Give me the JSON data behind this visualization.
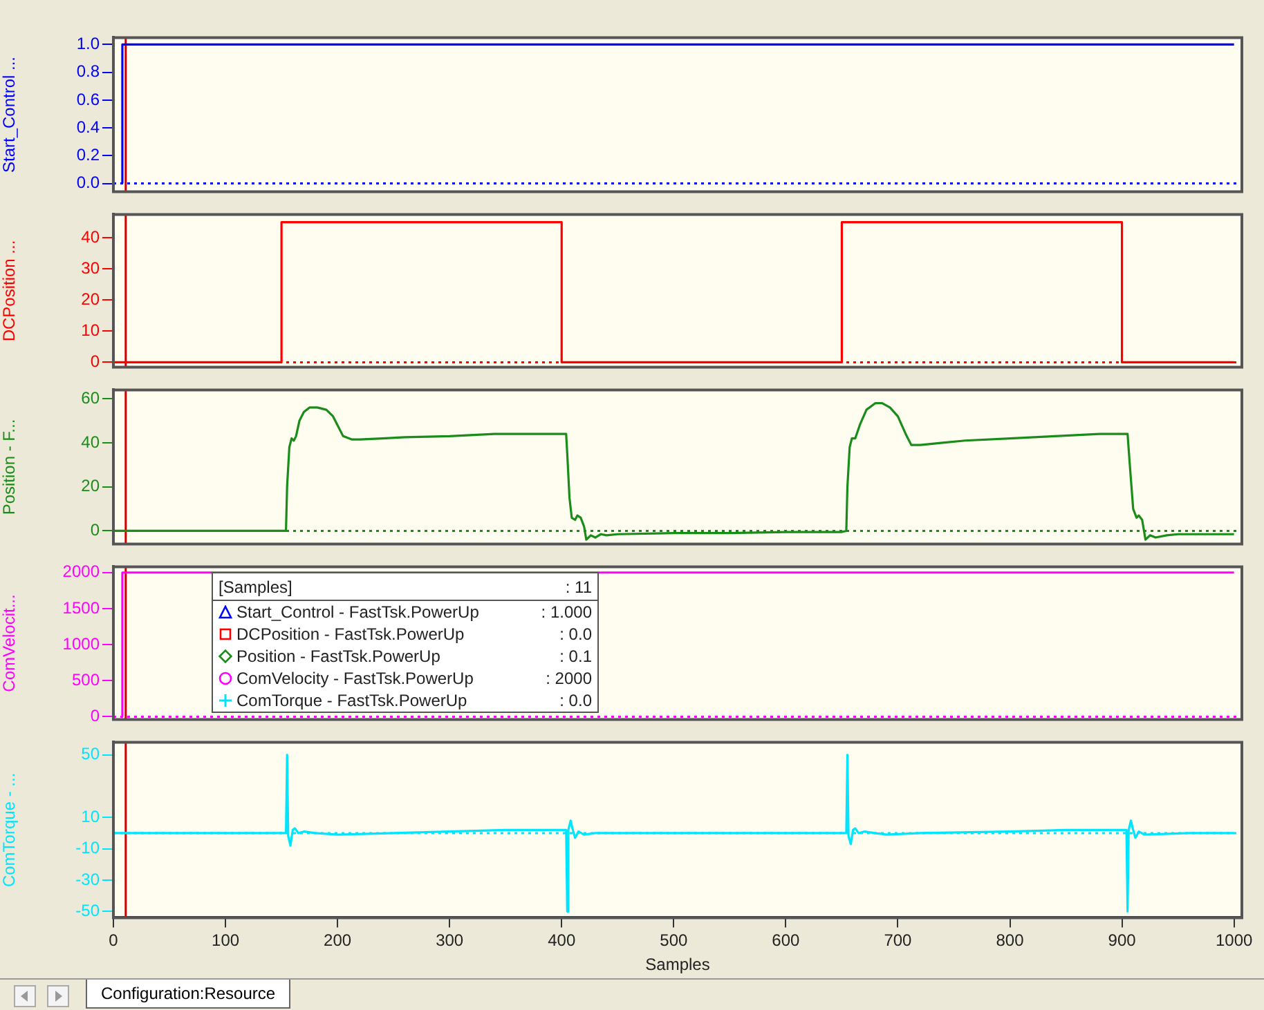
{
  "chart_data": [
    {
      "type": "line",
      "ylabel": "Start_Control ...",
      "x": [
        8,
        8,
        1000
      ],
      "xlim": [
        0,
        1007
      ],
      "ylim": [
        -0.06,
        1.05
      ],
      "yticks": [
        {
          "value": 0,
          "label": "0.0"
        },
        0.2,
        0.4,
        0.6,
        0.8,
        {
          "value": 1,
          "label": "1.0"
        }
      ],
      "tick_labels": "y",
      "legend": false,
      "grid": false,
      "series": [
        {
          "color": "#0000ff",
          "values": [
            0,
            1,
            1
          ]
        }
      ],
      "ref_lines": [
        {
          "axis": "x",
          "value": 11,
          "color": "#cc0000"
        },
        {
          "axis": "y",
          "value": 0,
          "color": "#0000ff",
          "line_style": "dotted"
        }
      ]
    },
    {
      "type": "line",
      "ylabel": "DCPosition ...",
      "x": [
        0,
        150,
        150,
        400,
        400,
        650,
        650,
        900,
        900,
        1000
      ],
      "xlim": [
        0,
        1007
      ],
      "ylim": [
        -1.6,
        47.5
      ],
      "yticks": [
        0,
        10,
        20,
        30,
        40
      ],
      "tick_labels": "y",
      "legend": false,
      "grid": false,
      "series": [
        {
          "color": "#ff0000",
          "values": [
            0,
            0,
            45,
            45,
            0,
            0,
            45,
            45,
            0,
            0
          ]
        }
      ],
      "ref_lines": [
        {
          "axis": "x",
          "value": 11,
          "color": "#cc0000"
        },
        {
          "axis": "y",
          "value": 0,
          "color": "#ff0000",
          "line_style": "dotted"
        }
      ]
    },
    {
      "type": "line",
      "ylabel": "Position - F...",
      "x": [
        0,
        154,
        155,
        157,
        159,
        161,
        163,
        166,
        170,
        175,
        182,
        190,
        196,
        200,
        205,
        213,
        220,
        240,
        260,
        300,
        340,
        380,
        404,
        405,
        407,
        409,
        412,
        414,
        417,
        420,
        422,
        426,
        430,
        435,
        440,
        450,
        500,
        550,
        600,
        650,
        654,
        655,
        657,
        659,
        662,
        666,
        672,
        680,
        686,
        693,
        700,
        707,
        712,
        720,
        740,
        760,
        800,
        840,
        880,
        904,
        905,
        907,
        910,
        913,
        915,
        918,
        921,
        925,
        930,
        940,
        950,
        970,
        1000
      ],
      "xlim": [
        0,
        1007
      ],
      "ylim": [
        -6,
        64
      ],
      "yticks": [
        0,
        20,
        40,
        60
      ],
      "tick_labels": "y",
      "legend": false,
      "grid": false,
      "series": [
        {
          "color": "#1a8c1a",
          "values": [
            0,
            0,
            20,
            38,
            42,
            41,
            43,
            50,
            54,
            56,
            56,
            55,
            52,
            48,
            43,
            41.5,
            41.5,
            42,
            42.5,
            43,
            44,
            44,
            44,
            35,
            15,
            6,
            5,
            7,
            6,
            2,
            -4,
            -2,
            -3,
            -1.5,
            -2,
            -1.5,
            -1,
            -1,
            -0.5,
            -0.5,
            0,
            20,
            38,
            42,
            42,
            48,
            55,
            58,
            58,
            56,
            52,
            44,
            39,
            39,
            40,
            41,
            42,
            43,
            44,
            44,
            44,
            30,
            10,
            6,
            7,
            5,
            -4,
            -2,
            -3,
            -2,
            -1.5,
            -1.5,
            -1.5
          ]
        }
      ],
      "ref_lines": [
        {
          "axis": "x",
          "value": 11,
          "color": "#cc0000"
        },
        {
          "axis": "y",
          "value": 0,
          "color": "#1a8c1a",
          "line_style": "dotted"
        }
      ]
    },
    {
      "type": "line",
      "ylabel": "ComVelocit...",
      "x": [
        8,
        8,
        1000
      ],
      "xlim": [
        0,
        1007
      ],
      "ylim": [
        -40,
        2080
      ],
      "yticks": [
        0,
        500,
        1000,
        1500,
        2000
      ],
      "tick_labels": "y",
      "legend": false,
      "grid": false,
      "series": [
        {
          "color": "#ff00ff",
          "values": [
            0,
            2000,
            2000
          ]
        }
      ],
      "ref_lines": [
        {
          "axis": "x",
          "value": 11,
          "color": "#cc0000"
        },
        {
          "axis": "y",
          "value": 0,
          "color": "#ff00ff",
          "line_style": "dotted"
        }
      ],
      "annotations": [
        "[Samples]",
        ": 11",
        "Start_Control - FastTsk.PowerUp",
        ": 1.000",
        "DCPosition - FastTsk.PowerUp",
        ": 0.0",
        "Position - FastTsk.PowerUp",
        ": 0.1",
        "ComVelocity - FastTsk.PowerUp",
        ": 2000",
        "ComTorque - FastTsk.PowerUp",
        ": 0.0"
      ]
    },
    {
      "type": "line",
      "ylabel": "ComTorque - ...",
      "xlabel": "Samples",
      "x": [
        0,
        154,
        155,
        156,
        158,
        160,
        162,
        165,
        170,
        180,
        200,
        250,
        300,
        350,
        400,
        404,
        405,
        406,
        408,
        410,
        412,
        415,
        420,
        430,
        500,
        600,
        654,
        655,
        656,
        658,
        660,
        662,
        665,
        670,
        690,
        720,
        800,
        850,
        904,
        905,
        906,
        908,
        910,
        912,
        915,
        920,
        960,
        1000
      ],
      "xlim": [
        0,
        1007
      ],
      "xticks": [
        0,
        100,
        200,
        300,
        400,
        500,
        600,
        700,
        800,
        900,
        1000
      ],
      "ylim": [
        -54,
        58
      ],
      "yticks": [
        -50,
        -30,
        -10,
        10,
        50
      ],
      "legend": false,
      "grid": false,
      "series": [
        {
          "color": "#00e5ff",
          "values": [
            0,
            0,
            50,
            -2,
            -8,
            2,
            3,
            0,
            1,
            0,
            -1,
            0,
            1,
            2,
            2,
            2,
            -50,
            2,
            8,
            2,
            -3,
            1,
            -1,
            0,
            0,
            0,
            0,
            50,
            -2,
            -7,
            2,
            3,
            0,
            1,
            -1,
            0,
            1,
            2,
            2,
            -50,
            2,
            8,
            2,
            -3,
            1,
            -1,
            0,
            0
          ]
        }
      ],
      "ref_lines": [
        {
          "axis": "x",
          "value": 11,
          "color": "#cc0000"
        },
        {
          "axis": "y",
          "value": 0,
          "color": "#00e5ff",
          "line_style": "dotted"
        }
      ],
      "annotations": [
        "Configuration:Resource"
      ]
    }
  ]
}
